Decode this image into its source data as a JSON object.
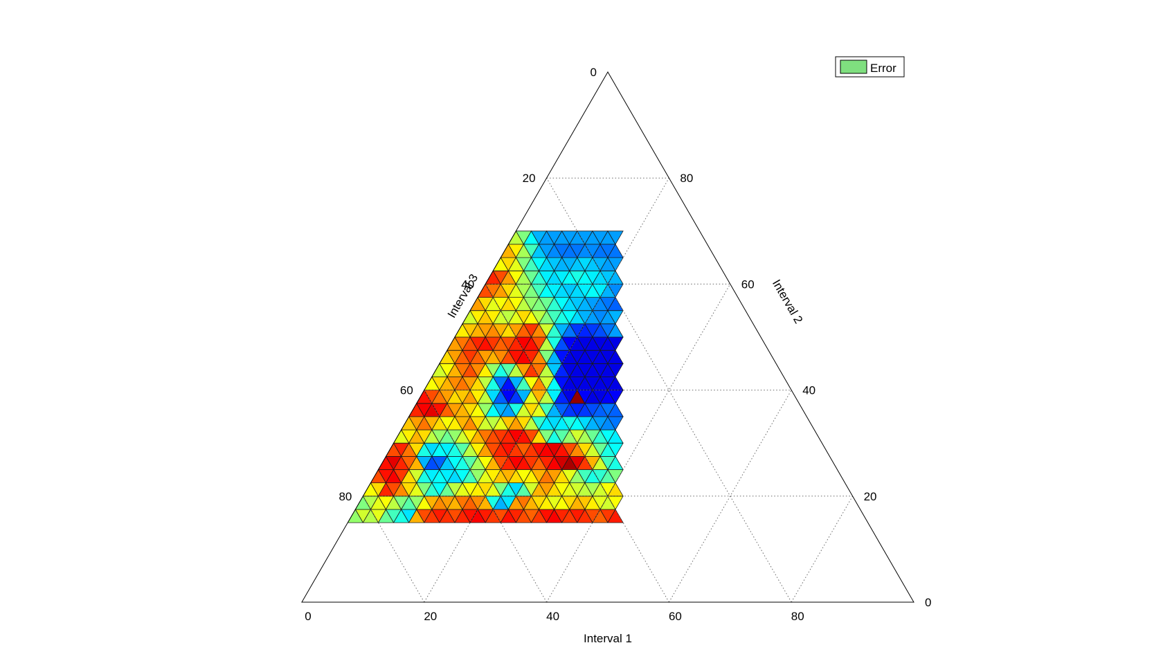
{
  "chart_data": {
    "type": "ternary-heatmap",
    "title": "",
    "axes": [
      {
        "name": "bottom",
        "label": "Interval 1",
        "ticks": [
          "0",
          "20",
          "40",
          "60",
          "80"
        ]
      },
      {
        "name": "right",
        "label": "Interval 2",
        "ticks": [
          "0",
          "20",
          "40",
          "60",
          "80"
        ]
      },
      {
        "name": "left",
        "label": "Interval 3",
        "ticks": [
          "0",
          "20",
          "40",
          "60",
          "80"
        ]
      }
    ],
    "grid": "dotted, every 20",
    "range": {
      "interval_1": [
        0,
        100
      ],
      "interval_2": [
        15,
        100
      ],
      "interval_3": [
        0,
        80
      ]
    },
    "mesh_resolution": 2.5,
    "colormap": "jet",
    "legend": {
      "position": "top-right",
      "entries": [
        {
          "label": "Error",
          "color": "#7fdf7f"
        }
      ]
    },
    "cells": {
      "note_units": "each row spans Interval 2 from v to v+2.5; columns step Interval 1 by 2.5 starting at Interval 1 = 0, values normalised 0-1 (jet colormap)",
      "rows": [
        {
          "v": 15.0,
          "values": [
            0.52,
            0.58,
            0.55,
            0.6,
            0.48,
            0.44,
            0.4,
            0.35,
            0.7,
            0.8,
            0.82,
            0.85,
            0.83,
            0.8,
            0.84,
            0.86,
            0.88,
            0.85,
            0.82,
            0.8,
            0.86,
            0.84,
            0.8,
            0.78,
            0.82,
            0.86,
            0.88,
            0.84,
            0.82,
            0.85,
            0.83,
            0.8,
            0.78,
            0.82,
            0.85
          ]
        },
        {
          "v": 17.5,
          "values": [
            0.5,
            0.55,
            0.6,
            0.62,
            0.56,
            0.5,
            0.46,
            0.52,
            0.62,
            0.7,
            0.74,
            0.72,
            0.7,
            0.76,
            0.78,
            0.74,
            0.7,
            0.4,
            0.3,
            0.35,
            0.72,
            0.76,
            0.7,
            0.66,
            0.64,
            0.6,
            0.62,
            0.66,
            0.7,
            0.68,
            0.64,
            0.6,
            0.58,
            0.62
          ]
        },
        {
          "v": 20.0,
          "values": [
            0.62,
            0.66,
            0.84,
            0.8,
            0.74,
            0.66,
            0.6,
            0.5,
            0.42,
            0.38,
            0.48,
            0.56,
            0.6,
            0.62,
            0.64,
            0.66,
            0.6,
            0.5,
            0.4,
            0.34,
            0.46,
            0.58,
            0.7,
            0.72,
            0.66,
            0.62,
            0.6,
            0.58,
            0.56,
            0.54,
            0.58,
            0.62,
            0.66
          ]
        },
        {
          "v": 22.5,
          "values": [
            0.8,
            0.86,
            0.88,
            0.82,
            0.66,
            0.58,
            0.4,
            0.36,
            0.38,
            0.36,
            0.34,
            0.38,
            0.44,
            0.52,
            0.6,
            0.64,
            0.68,
            0.7,
            0.66,
            0.62,
            0.64,
            0.7,
            0.76,
            0.72,
            0.66,
            0.6,
            0.52,
            0.44,
            0.4,
            0.42,
            0.46,
            0.5
          ]
        },
        {
          "v": 25.0,
          "values": [
            0.86,
            0.9,
            0.84,
            0.78,
            0.7,
            0.3,
            0.2,
            0.22,
            0.32,
            0.38,
            0.4,
            0.46,
            0.54,
            0.62,
            0.7,
            0.8,
            0.84,
            0.88,
            0.86,
            0.82,
            0.78,
            0.84,
            0.88,
            0.92,
            0.96,
            0.9,
            0.82,
            0.7,
            0.58,
            0.44,
            0.4
          ]
        },
        {
          "v": 27.5,
          "values": [
            0.8,
            0.84,
            0.76,
            0.66,
            0.4,
            0.34,
            0.38,
            0.36,
            0.4,
            0.46,
            0.56,
            0.64,
            0.72,
            0.8,
            0.84,
            0.86,
            0.82,
            0.78,
            0.82,
            0.86,
            0.88,
            0.9,
            0.86,
            0.8,
            0.74,
            0.66,
            0.58,
            0.48,
            0.4,
            0.38
          ]
        },
        {
          "v": 30.0,
          "values": [
            0.6,
            0.64,
            0.7,
            0.66,
            0.56,
            0.52,
            0.48,
            0.52,
            0.58,
            0.64,
            0.7,
            0.76,
            0.8,
            0.82,
            0.84,
            0.88,
            0.86,
            0.8,
            0.66,
            0.5,
            0.4,
            0.46,
            0.52,
            0.58,
            0.54,
            0.48,
            0.42,
            0.38,
            0.36
          ]
        },
        {
          "v": 32.5,
          "values": [
            0.68,
            0.72,
            0.76,
            0.7,
            0.66,
            0.62,
            0.64,
            0.7,
            0.74,
            0.66,
            0.58,
            0.56,
            0.6,
            0.68,
            0.72,
            0.66,
            0.56,
            0.42,
            0.36,
            0.34,
            0.36,
            0.4,
            0.38,
            0.34,
            0.3,
            0.28,
            0.26,
            0.24
          ]
        },
        {
          "v": 35.0,
          "values": [
            0.84,
            0.88,
            0.9,
            0.86,
            0.78,
            0.72,
            0.7,
            0.66,
            0.62,
            0.52,
            0.38,
            0.3,
            0.28,
            0.4,
            0.58,
            0.66,
            0.6,
            0.44,
            0.3,
            0.22,
            0.18,
            0.16,
            0.18,
            0.2,
            0.22,
            0.24,
            0.22
          ]
        },
        {
          "v": 37.5,
          "values": [
            0.86,
            0.8,
            0.76,
            0.72,
            0.66,
            0.68,
            0.72,
            0.64,
            0.56,
            0.34,
            0.22,
            0.12,
            0.18,
            0.3,
            0.6,
            0.7,
            0.56,
            0.36,
            0.16,
            0.1,
            0.98,
            0.12,
            0.1,
            0.1,
            0.12,
            0.12
          ]
        },
        {
          "v": 40.0,
          "values": [
            0.62,
            0.66,
            0.7,
            0.74,
            0.76,
            0.72,
            0.66,
            0.56,
            0.4,
            0.24,
            0.14,
            0.3,
            0.44,
            0.62,
            0.74,
            0.58,
            0.38,
            0.14,
            0.1,
            0.1,
            0.1,
            0.1,
            0.1,
            0.1,
            0.1
          ]
        },
        {
          "v": 42.5,
          "values": [
            0.58,
            0.62,
            0.7,
            0.76,
            0.8,
            0.74,
            0.64,
            0.52,
            0.4,
            0.46,
            0.56,
            0.72,
            0.82,
            0.76,
            0.56,
            0.32,
            0.16,
            0.1,
            0.1,
            0.1,
            0.1,
            0.1,
            0.1,
            0.1
          ]
        },
        {
          "v": 45.0,
          "values": [
            0.66,
            0.72,
            0.78,
            0.82,
            0.78,
            0.72,
            0.7,
            0.74,
            0.8,
            0.86,
            0.88,
            0.84,
            0.74,
            0.5,
            0.3,
            0.14,
            0.1,
            0.1,
            0.1,
            0.1,
            0.1,
            0.1,
            0.1
          ]
        },
        {
          "v": 47.5,
          "values": [
            0.72,
            0.76,
            0.8,
            0.84,
            0.86,
            0.82,
            0.78,
            0.8,
            0.84,
            0.88,
            0.86,
            0.8,
            0.56,
            0.4,
            0.2,
            0.12,
            0.1,
            0.1,
            0.1,
            0.1,
            0.1,
            0.1
          ]
        },
        {
          "v": 50.0,
          "values": [
            0.64,
            0.68,
            0.7,
            0.72,
            0.74,
            0.7,
            0.66,
            0.72,
            0.78,
            0.82,
            0.74,
            0.58,
            0.42,
            0.3,
            0.24,
            0.18,
            0.16,
            0.18,
            0.2,
            0.24,
            0.28
          ]
        },
        {
          "v": 52.5,
          "values": [
            0.58,
            0.64,
            0.68,
            0.64,
            0.58,
            0.56,
            0.6,
            0.66,
            0.62,
            0.56,
            0.5,
            0.44,
            0.4,
            0.38,
            0.34,
            0.3,
            0.28,
            0.26,
            0.28,
            0.3
          ]
        },
        {
          "v": 55.0,
          "values": [
            0.72,
            0.66,
            0.6,
            0.62,
            0.66,
            0.62,
            0.56,
            0.52,
            0.5,
            0.48,
            0.42,
            0.38,
            0.34,
            0.32,
            0.3,
            0.28,
            0.26,
            0.24,
            0.22
          ]
        },
        {
          "v": 57.5,
          "values": [
            0.8,
            0.76,
            0.72,
            0.66,
            0.6,
            0.54,
            0.5,
            0.44,
            0.38,
            0.36,
            0.34,
            0.32,
            0.34,
            0.36,
            0.38,
            0.36,
            0.3,
            0.26
          ]
        },
        {
          "v": 60.0,
          "values": [
            0.84,
            0.8,
            0.72,
            0.62,
            0.54,
            0.48,
            0.42,
            0.36,
            0.34,
            0.36,
            0.38,
            0.4,
            0.38,
            0.36,
            0.34,
            0.32,
            0.3
          ]
        },
        {
          "v": 62.5,
          "values": [
            0.62,
            0.66,
            0.6,
            0.5,
            0.44,
            0.38,
            0.34,
            0.32,
            0.3,
            0.3,
            0.32,
            0.34,
            0.32,
            0.3,
            0.28,
            0.28
          ]
        },
        {
          "v": 65.0,
          "values": [
            0.7,
            0.64,
            0.54,
            0.44,
            0.32,
            0.28,
            0.26,
            0.24,
            0.24,
            0.24,
            0.26,
            0.26,
            0.24,
            0.24,
            0.24
          ]
        },
        {
          "v": 67.5,
          "values": [
            0.56,
            0.5,
            0.38,
            0.3,
            0.28,
            0.28,
            0.28,
            0.28,
            0.28,
            0.28,
            0.28,
            0.28,
            0.28,
            0.28
          ]
        }
      ]
    }
  }
}
